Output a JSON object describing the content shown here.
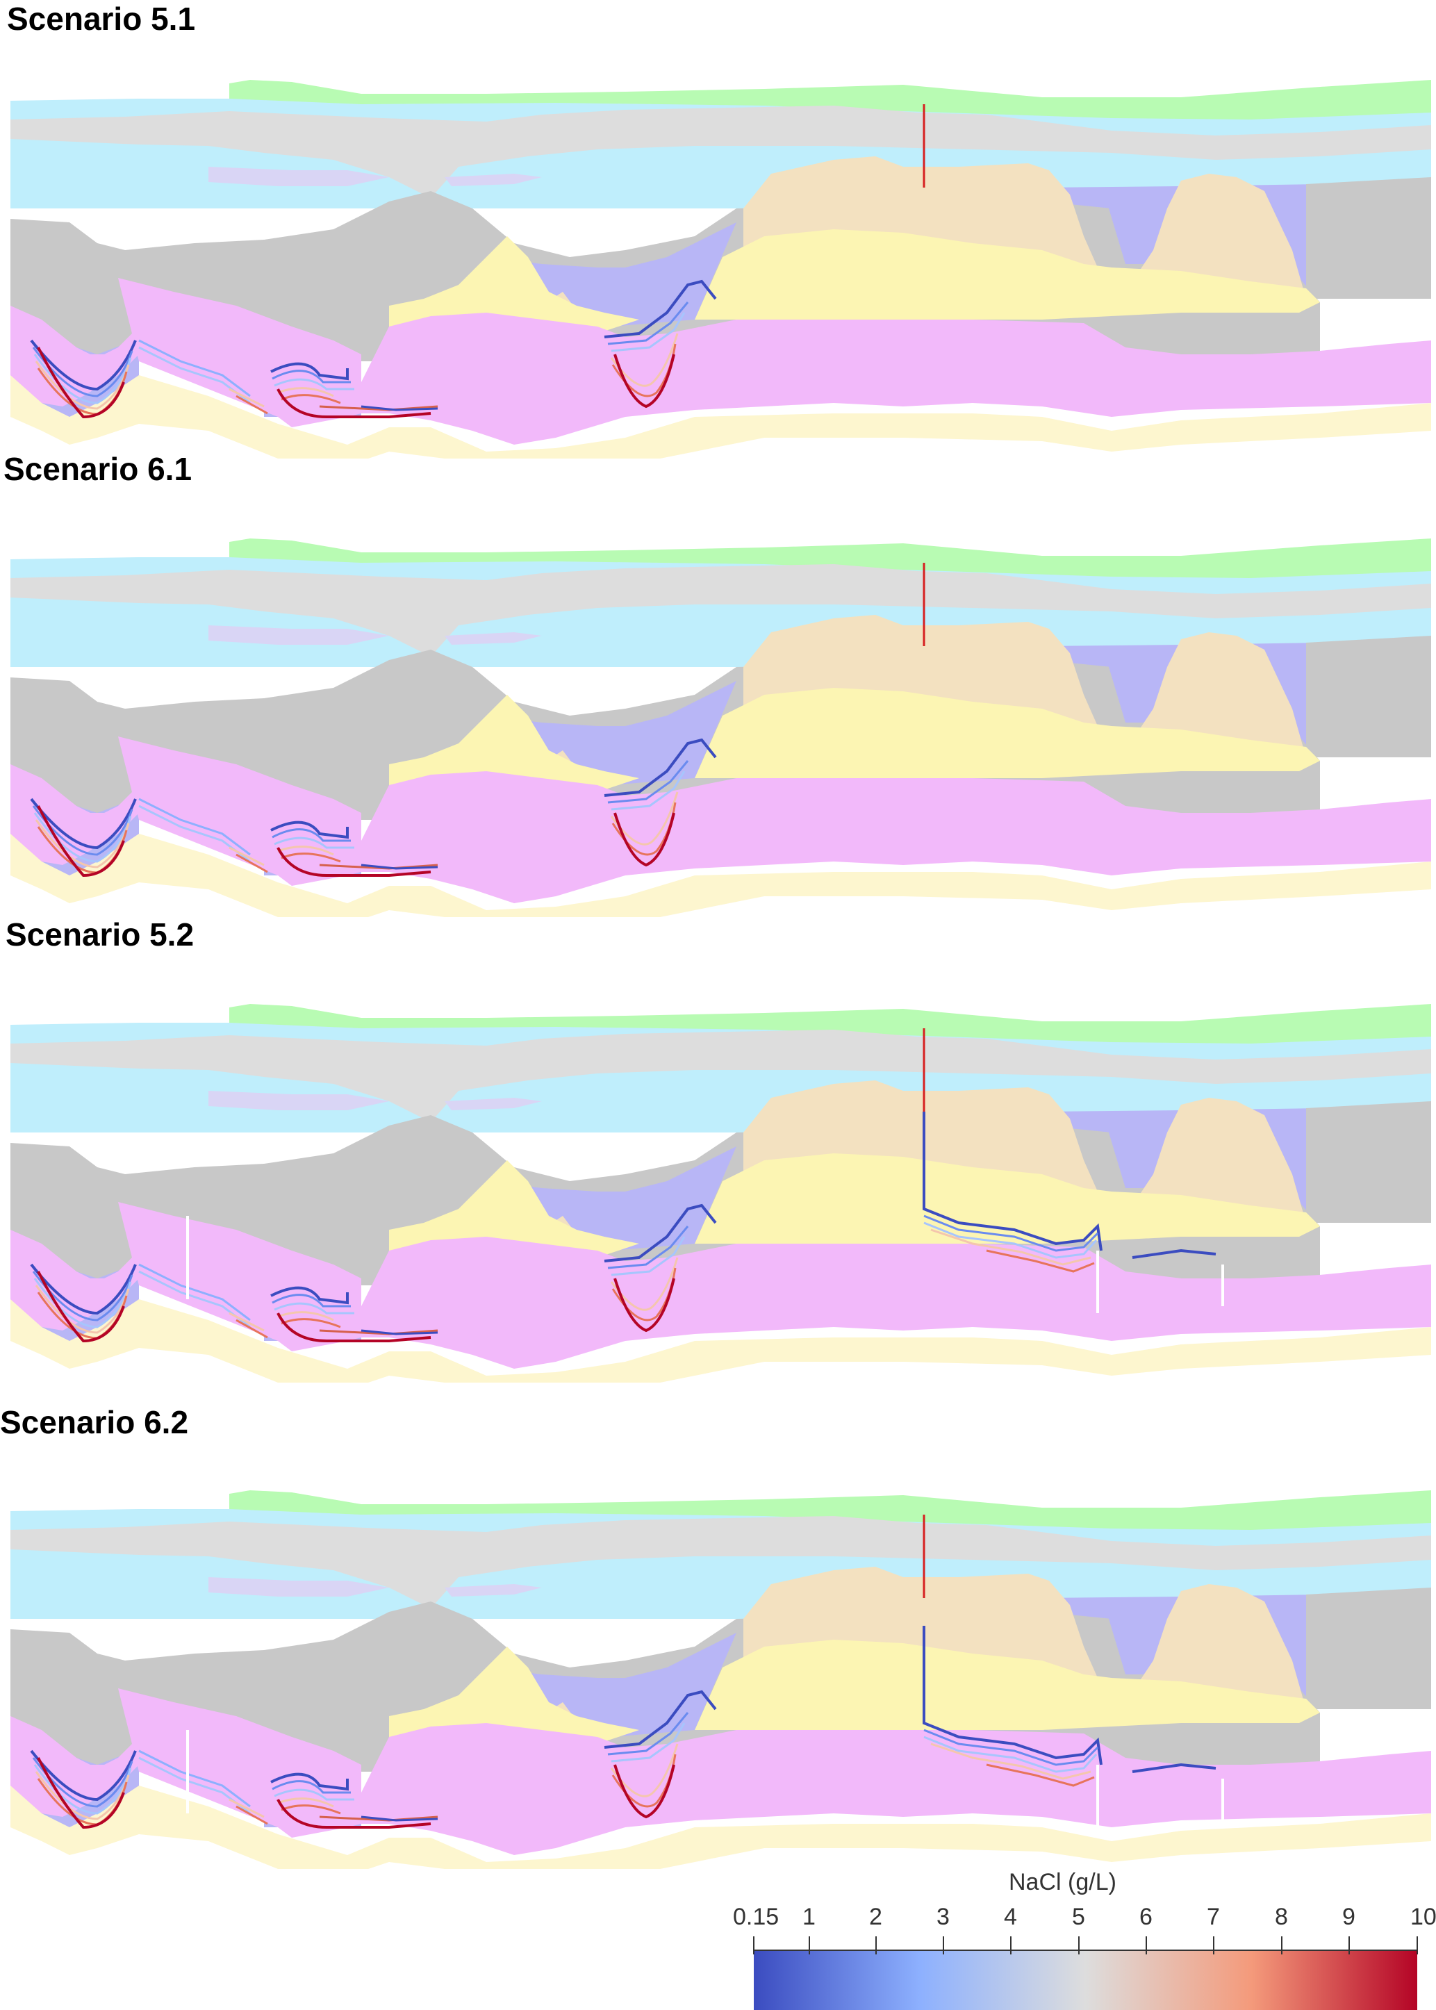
{
  "panels": [
    {
      "title": "Scenario 5.1",
      "variant": "1"
    },
    {
      "title": "Scenario 6.1",
      "variant": "1"
    },
    {
      "title": "Scenario 5.2",
      "variant": "2"
    },
    {
      "title": "Scenario 6.2",
      "variant": "2"
    }
  ],
  "colorbar": {
    "title": "NaCl (g/L)",
    "ticks": [
      "0.15",
      "1",
      "2",
      "3",
      "4",
      "5",
      "6",
      "7",
      "8",
      "9",
      "10"
    ],
    "colors": [
      "#3b4cc0",
      "#8db0fe",
      "#dddddd",
      "#f49a7b",
      "#b40426"
    ]
  },
  "layer_colors": {
    "green": "#b8fbb3",
    "light_blue": "#bfeefc",
    "lilac": "#d9d5f5",
    "gray": "#dddddd",
    "dark_gray": "#c8c8c8",
    "blue_violet": "#b8b6f6",
    "tan": "#f3e1c0",
    "yellow": "#fcf5b3",
    "pink": "#f2b9fa",
    "cream": "#fdf6cf"
  }
}
